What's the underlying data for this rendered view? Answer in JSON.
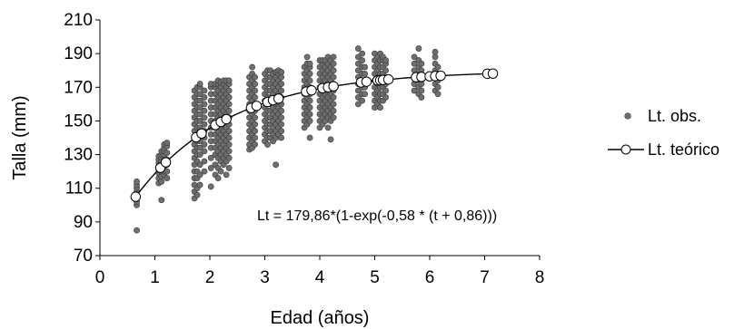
{
  "chart_data": {
    "type": "scatter",
    "xlabel": "Edad (años)",
    "ylabel": "Talla (mm)",
    "xlim": [
      0,
      8
    ],
    "ylim": [
      70,
      210
    ],
    "xticks": [
      0,
      1,
      2,
      3,
      4,
      5,
      6,
      7,
      8
    ],
    "yticks": [
      70,
      90,
      110,
      130,
      150,
      170,
      190,
      210
    ],
    "grid": false,
    "legend": "right",
    "annotation": "Lt = 179,86*(1-exp(-0,58 * (t + 0,86)))",
    "model": {
      "Linf": 179.86,
      "k": 0.58,
      "t0": -0.86
    },
    "colors": {
      "observed": "#6e6e6e",
      "theoretical_line": "#000000",
      "theoretical_marker": "#ffffff"
    },
    "series": [
      {
        "name": "Lt. obs.",
        "kind": "points",
        "groups": [
          {
            "x": 0.67,
            "values": [
              85,
              100,
              102,
              104,
              106,
              108,
              110,
              112,
              114
            ]
          },
          {
            "x": 1.07,
            "values": [
              113,
              116,
              119,
              121,
              123,
              125,
              127,
              129
            ]
          },
          {
            "x": 1.12,
            "values": [
              103,
              114,
              117,
              120,
              123,
              126,
              128,
              130,
              132
            ]
          },
          {
            "x": 1.17,
            "values": [
              118,
              120,
              123,
              126,
              128,
              130,
              132,
              134,
              136
            ]
          },
          {
            "x": 1.22,
            "values": [
              116,
              120,
              124,
              127,
              131,
              135,
              137
            ]
          },
          {
            "x": 1.72,
            "values": [
              104,
              108,
              112,
              116,
              120,
              124,
              128,
              132,
              136,
              140,
              144,
              148,
              152,
              156,
              160,
              164,
              168
            ]
          },
          {
            "x": 1.77,
            "values": [
              106,
              110,
              116,
              120,
              126,
              130,
              134,
              138,
              142,
              146,
              150,
              154,
              158,
              162,
              166,
              170
            ]
          },
          {
            "x": 1.82,
            "values": [
              112,
              118,
              124,
              130,
              134,
              138,
              142,
              146,
              150,
              154,
              158,
              162,
              166,
              170,
              172
            ]
          },
          {
            "x": 1.9,
            "values": [
              120,
              126,
              132,
              136,
              140,
              144,
              148,
              152,
              156,
              160,
              164,
              168
            ]
          },
          {
            "x": 2.02,
            "values": [
              111,
              122,
              128,
              134,
              138,
              142,
              146,
              150,
              154,
              158,
              162,
              166,
              170,
              172
            ]
          },
          {
            "x": 2.1,
            "values": [
              118,
              124,
              130,
              134,
              138,
              142,
              146,
              150,
              154,
              158,
              162,
              166,
              170,
              172
            ]
          },
          {
            "x": 2.15,
            "values": [
              116,
              122,
              128,
              132,
              136,
              140,
              144,
              148,
              152,
              156,
              160,
              164,
              168,
              172,
              174
            ]
          },
          {
            "x": 2.2,
            "values": [
              120,
              126,
              130,
              134,
              138,
              142,
              146,
              150,
              154,
              158,
              162,
              166,
              170,
              173
            ]
          },
          {
            "x": 2.25,
            "values": [
              124,
              128,
              132,
              136,
              140,
              144,
              148,
              152,
              156,
              160,
              164,
              168,
              172,
              174
            ]
          },
          {
            "x": 2.3,
            "values": [
              118,
              126,
              130,
              134,
              138,
              142,
              146,
              150,
              154,
              158,
              162,
              166,
              170,
              174
            ]
          },
          {
            "x": 2.35,
            "values": [
              122,
              128,
              132,
              136,
              140,
              144,
              148,
              152,
              156,
              160,
              164,
              168,
              172,
              174
            ]
          },
          {
            "x": 2.72,
            "values": [
              133,
              136,
              140,
              144,
              148,
              152,
              156,
              160,
              164,
              168,
              172,
              176
            ]
          },
          {
            "x": 2.77,
            "values": [
              134,
              138,
              142,
              146,
              150,
              154,
              158,
              162,
              166,
              170,
              174,
              178,
              182
            ]
          },
          {
            "x": 2.82,
            "values": [
              136,
              140,
              144,
              148,
              152,
              156,
              160,
              164,
              168,
              172,
              176
            ]
          },
          {
            "x": 3.0,
            "values": [
              138,
              142,
              146,
              150,
              154,
              158,
              162,
              166,
              170,
              174,
              178
            ]
          },
          {
            "x": 3.05,
            "values": [
              136,
              140,
              144,
              148,
              152,
              156,
              160,
              164,
              168,
              172,
              176,
              180
            ]
          },
          {
            "x": 3.1,
            "values": [
              140,
              144,
              148,
              152,
              156,
              160,
              164,
              168,
              172,
              176,
              180
            ]
          },
          {
            "x": 3.15,
            "values": [
              138,
              142,
              146,
              150,
              154,
              158,
              162,
              166,
              170,
              174,
              178
            ]
          },
          {
            "x": 3.2,
            "values": [
              124,
              140,
              144,
              148,
              152,
              156,
              160,
              164,
              168,
              172,
              176,
              179
            ]
          },
          {
            "x": 3.25,
            "values": [
              142,
              146,
              150,
              154,
              158,
              162,
              166,
              170,
              174,
              178,
              180
            ]
          },
          {
            "x": 3.3,
            "values": [
              140,
              144,
              148,
              152,
              156,
              160,
              164,
              168,
              172,
              176,
              179
            ]
          },
          {
            "x": 3.72,
            "values": [
              146,
              150,
              154,
              158,
              162,
              166,
              170,
              174,
              178,
              182
            ]
          },
          {
            "x": 3.77,
            "values": [
              148,
              152,
              156,
              160,
              164,
              168,
              172,
              176,
              180,
              184,
              188
            ]
          },
          {
            "x": 3.82,
            "values": [
              140,
              150,
              154,
              158,
              162,
              166,
              170,
              174,
              178,
              182,
              184
            ]
          },
          {
            "x": 4.0,
            "values": [
              146,
              150,
              154,
              158,
              162,
              166,
              170,
              174,
              178,
              182,
              186
            ]
          },
          {
            "x": 4.05,
            "values": [
              148,
              152,
              156,
              160,
              164,
              168,
              172,
              176,
              180,
              184,
              186
            ]
          },
          {
            "x": 4.1,
            "values": [
              150,
              154,
              158,
              162,
              166,
              170,
              174,
              178,
              182,
              186
            ]
          },
          {
            "x": 4.15,
            "values": [
              146,
              152,
              156,
              160,
              164,
              168,
              172,
              176,
              180,
              184,
              188
            ]
          },
          {
            "x": 4.2,
            "values": [
              139,
              150,
              154,
              158,
              162,
              166,
              170,
              174,
              178,
              182,
              186
            ]
          },
          {
            "x": 4.25,
            "values": [
              152,
              156,
              160,
              164,
              168,
              172,
              176,
              180,
              184,
              188
            ]
          },
          {
            "x": 4.7,
            "values": [
              160,
              164,
              168,
              172,
              176,
              180,
              184,
              188,
              193
            ]
          },
          {
            "x": 4.77,
            "values": [
              162,
              166,
              170,
              174,
              178,
              182,
              186,
              190
            ]
          },
          {
            "x": 4.82,
            "values": [
              166,
              170,
              174,
              178,
              182
            ]
          },
          {
            "x": 5.0,
            "values": [
              158,
              162,
              166,
              170,
              174,
              178,
              182,
              186,
              190
            ]
          },
          {
            "x": 5.05,
            "values": [
              160,
              164,
              168,
              172,
              176,
              180,
              184,
              188
            ]
          },
          {
            "x": 5.1,
            "values": [
              158,
              162,
              166,
              170,
              174,
              178,
              182,
              186,
              190
            ]
          },
          {
            "x": 5.15,
            "values": [
              162,
              166,
              170,
              174,
              178,
              182,
              186,
              188
            ]
          },
          {
            "x": 5.2,
            "values": [
              164,
              168,
              172,
              176,
              180,
              184,
              186
            ]
          },
          {
            "x": 5.72,
            "values": [
              168,
              172,
              176,
              180,
              184,
              188
            ]
          },
          {
            "x": 5.8,
            "values": [
              166,
              170,
              174,
              178,
              182,
              186,
              193
            ]
          },
          {
            "x": 5.85,
            "values": [
              164,
              168,
              172,
              176,
              180,
              184
            ]
          },
          {
            "x": 6.1,
            "values": [
              168,
              172,
              176,
              180,
              184,
              188,
              191
            ]
          },
          {
            "x": 6.15,
            "values": [
              166,
              170,
              174,
              178,
              182
            ]
          }
        ]
      },
      {
        "name": "Lt. teórico",
        "kind": "line-markers",
        "markers_x": [
          0.65,
          1.1,
          1.2,
          1.75,
          1.85,
          2.1,
          2.2,
          2.3,
          2.75,
          2.85,
          3.05,
          3.15,
          3.25,
          3.75,
          3.85,
          4.05,
          4.15,
          4.25,
          4.75,
          4.85,
          5.05,
          5.1,
          5.15,
          5.25,
          5.75,
          5.85,
          6.0,
          6.1,
          6.2,
          7.05,
          7.15
        ]
      }
    ]
  }
}
